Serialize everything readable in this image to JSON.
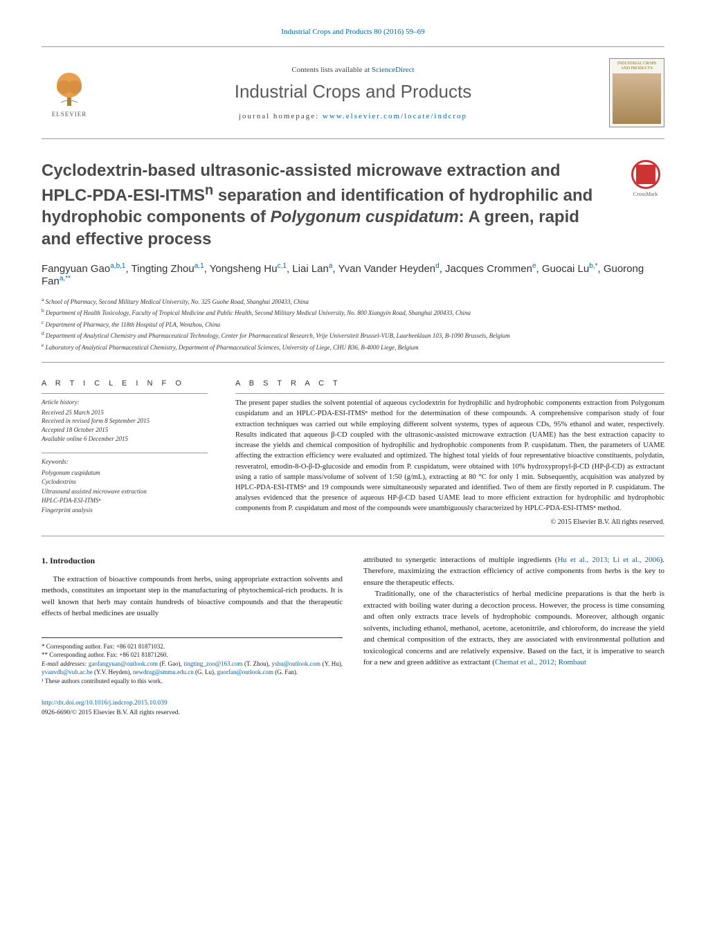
{
  "journal_header": "Industrial Crops and Products 80 (2016) 59–69",
  "header_band": {
    "contents_prefix": "Contents lists available at ",
    "contents_link": "ScienceDirect",
    "journal_title": "Industrial Crops and Products",
    "homepage_prefix": "journal homepage: ",
    "homepage_link": "www.elsevier.com/locate/indcrop",
    "elsevier_label": "ELSEVIER",
    "cover_title": "INDUSTRIAL CROPS AND PRODUCTS"
  },
  "crossmark_label": "CrossMark",
  "title_parts": {
    "pre": "Cyclodextrin-based ultrasonic-assisted microwave extraction and HPLC-PDA-ESI-ITMS",
    "sup": "n",
    "mid": " separation and identification of hydrophilic and hydrophobic components of ",
    "italic": "Polygonum cuspidatum",
    "post": ": A green, rapid and effective process"
  },
  "authors": [
    {
      "name": "Fangyuan Gao",
      "aff": "a,b,1"
    },
    {
      "name": "Tingting Zhou",
      "aff": "a,1"
    },
    {
      "name": "Yongsheng Hu",
      "aff": "c,1"
    },
    {
      "name": "Liai Lan",
      "aff": "a"
    },
    {
      "name": "Yvan Vander Heyden",
      "aff": "d"
    },
    {
      "name": "Jacques Crommen",
      "aff": "e"
    },
    {
      "name": "Guocai Lu",
      "aff": "b,*"
    },
    {
      "name": "Guorong Fan",
      "aff": "a,**"
    }
  ],
  "affiliations": [
    {
      "key": "a",
      "text": "School of Pharmacy, Second Military Medical University, No. 325 Guohe Road, Shanghai 200433, China"
    },
    {
      "key": "b",
      "text": "Department of Health Toxicology, Faculty of Tropical Medicine and Public Health, Second Military Medical University, No. 800 Xiangyin Road, Shanghai 200433, China"
    },
    {
      "key": "c",
      "text": "Department of Pharmacy, the 118th Hospital of PLA, Wenzhou, China"
    },
    {
      "key": "d",
      "text": "Department of Analytical Chemistry and Pharmaceutical Technology, Center for Pharmaceutical Research, Vrije Universiteit Brussel-VUB, Laarbeeklaan 103, B-1090 Brussels, Belgium"
    },
    {
      "key": "e",
      "text": "Laboratory of Analytical Pharmaceutical Chemistry, Department of Pharmaceutical Sciences, University of Liege, CHU B36, B-4000 Liege, Belgium"
    }
  ],
  "article_info_heading": "a r t i c l e   i n f o",
  "abstract_heading": "a b s t r a c t",
  "history": {
    "label": "Article history:",
    "received": "Received 25 March 2015",
    "revised": "Received in revised form 8 September 2015",
    "accepted": "Accepted 18 October 2015",
    "online": "Available online 6 December 2015"
  },
  "keywords": {
    "label": "Keywords:",
    "items": [
      "Polygonum cuspidatum",
      "Cyclodextrins",
      "Ultrasound assisted microwave extraction",
      "HPLC-PDA-ESI-ITMSⁿ",
      "Fingerprint analysis"
    ]
  },
  "abstract_text": "The present paper studies the solvent potential of aqueous cyclodextrin for hydrophilic and hydrophobic components extraction from Polygonum cuspidatum and an HPLC-PDA-ESI-ITMSⁿ method for the determination of these compounds. A comprehensive comparison study of four extraction techniques was carried out while employing different solvent systems, types of aqueous CDs, 95% ethanol and water, respectively. Results indicated that aqueous β-CD coupled with the ultrasonic-assisted microwave extraction (UAME) has the best extraction capacity to increase the yields and chemical composition of hydrophilic and hydrophobic components from P. cuspidatum. Then, the parameters of UAME affecting the extraction efficiency were evaluated and optimized. The highest total yields of four representative bioactive constituents, polydatin, resveratrol, emodin-8-O-β-D-glucoside and emodin from P. cuspidatum, were obtained with 10% hydroxypropyl-β-CD (HP-β-CD) as extractant using a ratio of sample mass/volume of solvent of 1:50 (g/mL), extracting at 80 °C for only 1 min. Subsequently, acquisition was analyzed by HPLC-PDA-ESI-ITMSⁿ and 19 compounds were simultaneously separated and identified. Two of them are firstly reported in P. cuspidatum. The analyses evidenced that the presence of aqueous HP-β-CD based UAME lead to more efficient extraction for hydrophilic and hydrophobic components from P. cuspidatum and most of the compounds were unambiguously characterized by HPLC-PDA-ESI-ITMSⁿ method.",
  "copyright": "© 2015 Elsevier B.V. All rights reserved.",
  "intro_heading": "1. Introduction",
  "intro_col1_p1": "The extraction of bioactive compounds from herbs, using appropriate extraction solvents and methods, constitutes an important step in the manufacturing of phytochemical-rich products. It is well known that herb may contain hundreds of bioactive compounds and that the therapeutic effects of herbal medicines are usually",
  "intro_col2_p1_pre": "attributed to synergetic interactions of multiple ingredients (",
  "intro_col2_p1_cite": "Hu et al., 2013; Li et al., 2006",
  "intro_col2_p1_post": "). Therefore, maximizing the extraction efficiency of active components from herbs is the key to ensure the therapeutic effects.",
  "intro_col2_p2_pre": "Traditionally, one of the characteristics of herbal medicine preparations is that the herb is extracted with boiling water during a decoction process. However, the process is time consuming and often only extracts trace levels of hydrophobic compounds. Moreover, although organic solvents, including ethanol, methanol, acetone, acetonitrile, and chloroform, do increase the yield and chemical composition of the extracts, they are associated with environmental pollution and toxicological concerns and are relatively expensive. Based on the fact, it is imperative to search for a new and green additive as extractant (",
  "intro_col2_p2_cite": "Chemat et al., 2012; Rombaut",
  "footnotes": {
    "corr1": "* Corresponding author. Fax: +86 021 81871032.",
    "corr2": "** Corresponding author. Fax: +86 021 81871260.",
    "emails_label": "E-mail addresses: ",
    "emails": [
      {
        "addr": "gaofangyuan@outlook.com",
        "who": "(F. Gao)"
      },
      {
        "addr": "tingting_zoo@163.com",
        "who": "(T. Zhou)"
      },
      {
        "addr": "yshu@outlook.com",
        "who": "(Y. Hu)"
      },
      {
        "addr": "yvanvdh@vub.ac.be",
        "who": "(Y.V. Heyden)"
      },
      {
        "addr": "newdrug@smmu.edu.cn",
        "who": "(G. Lu)"
      },
      {
        "addr": "guorfan@outlook.com",
        "who": "(G. Fan)"
      }
    ],
    "equal": "¹ These authors contributed equally to this work."
  },
  "doi": {
    "link": "http://dx.doi.org/10.1016/j.indcrop.2015.10.039",
    "issn": "0926-6690/© 2015 Elsevier B.V. All rights reserved."
  },
  "colors": {
    "link": "#0066a1",
    "title_gray": "#4a4a4a",
    "crossmark_red": "#c33",
    "text": "#1a1a1a"
  }
}
